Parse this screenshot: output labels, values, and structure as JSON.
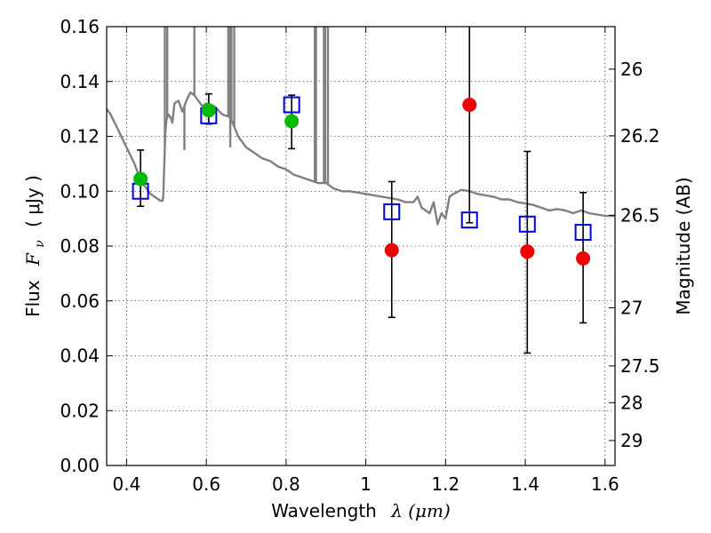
{
  "chart_data": {
    "type": "scatter",
    "xlabel": "Wavelength",
    "xlabel_symbol": "λ (μm)",
    "ylabel": "Flux",
    "ylabel_symbol": "F",
    "ylabel_symbol_sub": "ν",
    "ylabel_unit": "( μJy )",
    "y2label": "Magnitude (AB)",
    "xlim": [
      0.35,
      1.625
    ],
    "ylim": [
      0.0,
      0.16
    ],
    "grid": true,
    "x_ticks": [
      0.4,
      0.6,
      0.8,
      1.0,
      1.2,
      1.4,
      1.6
    ],
    "x_tick_labels": [
      "0.4",
      "0.6",
      "0.8",
      "1",
      "1.2",
      "1.4",
      "1.6"
    ],
    "y_ticks": [
      0.0,
      0.02,
      0.04,
      0.06,
      0.08,
      0.1,
      0.12,
      0.14,
      0.16
    ],
    "y_tick_labels": [
      "0.00",
      "0.02",
      "0.04",
      "0.06",
      "0.08",
      "0.10",
      "0.12",
      "0.14",
      "0.16"
    ],
    "y2_ticks": [
      {
        "label": "26",
        "flux": 0.1445
      },
      {
        "label": "26.2",
        "flux": 0.1202
      },
      {
        "label": "26.5",
        "flux": 0.0912
      },
      {
        "label": "27",
        "flux": 0.0575
      },
      {
        "label": "27.5",
        "flux": 0.0363
      },
      {
        "label": "28",
        "flux": 0.0229
      },
      {
        "label": "29",
        "flux": 0.0091
      }
    ],
    "series": [
      {
        "kind": "observed-green",
        "color": "#00bb00",
        "points": [
          {
            "x": 0.435,
            "y": 0.1045
          },
          {
            "x": 0.606,
            "y": 0.1295
          },
          {
            "x": 0.814,
            "y": 0.1255
          }
        ]
      },
      {
        "kind": "observed-red",
        "color": "#ee0000",
        "points": [
          {
            "x": 1.065,
            "y": 0.0785
          },
          {
            "x": 1.26,
            "y": 0.1315
          },
          {
            "x": 1.405,
            "y": 0.078
          },
          {
            "x": 1.545,
            "y": 0.0755
          }
        ]
      },
      {
        "kind": "model-squares",
        "color": "#0000dd",
        "points": [
          {
            "x": 0.435,
            "y": 0.1,
            "err_lo": 0.0945,
            "err_hi": 0.115
          },
          {
            "x": 0.606,
            "y": 0.1275,
            "err_lo": 0.1245,
            "err_hi": 0.1355
          },
          {
            "x": 0.814,
            "y": 0.1315,
            "err_lo": 0.1155,
            "err_hi": 0.135
          },
          {
            "x": 1.065,
            "y": 0.0925,
            "err_lo": 0.054,
            "err_hi": 0.1035
          },
          {
            "x": 1.26,
            "y": 0.0895,
            "err_lo": 0.0885,
            "err_hi": 0.17
          },
          {
            "x": 1.405,
            "y": 0.088,
            "err_lo": 0.041,
            "err_hi": 0.1145
          },
          {
            "x": 1.545,
            "y": 0.085,
            "err_lo": 0.052,
            "err_hi": 0.0995
          }
        ]
      },
      {
        "kind": "model-spectrum",
        "color": "#808080",
        "points": [
          [
            0.35,
            0.13
          ],
          [
            0.36,
            0.128
          ],
          [
            0.37,
            0.125
          ],
          [
            0.38,
            0.122
          ],
          [
            0.39,
            0.119
          ],
          [
            0.4,
            0.116
          ],
          [
            0.41,
            0.113
          ],
          [
            0.42,
            0.11
          ],
          [
            0.43,
            0.106
          ],
          [
            0.44,
            0.103
          ],
          [
            0.45,
            0.101
          ],
          [
            0.46,
            0.099
          ],
          [
            0.47,
            0.098
          ],
          [
            0.48,
            0.097
          ],
          [
            0.485,
            0.0965
          ],
          [
            0.49,
            0.0965
          ],
          [
            0.492,
            0.098
          ],
          [
            0.495,
            0.112
          ],
          [
            0.497,
            0.121
          ],
          [
            0.5,
            0.126
          ],
          [
            0.505,
            0.128
          ],
          [
            0.51,
            0.127
          ],
          [
            0.515,
            0.125
          ],
          [
            0.52,
            0.132
          ],
          [
            0.53,
            0.133
          ],
          [
            0.54,
            0.129
          ],
          [
            0.55,
            0.133
          ],
          [
            0.56,
            0.136
          ],
          [
            0.57,
            0.135
          ],
          [
            0.58,
            0.133
          ],
          [
            0.59,
            0.131
          ],
          [
            0.6,
            0.132
          ],
          [
            0.62,
            0.131
          ],
          [
            0.64,
            0.128
          ],
          [
            0.66,
            0.127
          ],
          [
            0.68,
            0.12
          ],
          [
            0.7,
            0.116
          ],
          [
            0.72,
            0.114
          ],
          [
            0.74,
            0.112
          ],
          [
            0.76,
            0.111
          ],
          [
            0.78,
            0.109
          ],
          [
            0.8,
            0.108
          ],
          [
            0.82,
            0.106
          ],
          [
            0.84,
            0.105
          ],
          [
            0.86,
            0.104
          ],
          [
            0.88,
            0.103
          ],
          [
            0.9,
            0.103
          ],
          [
            0.92,
            0.101
          ],
          [
            0.94,
            0.1
          ],
          [
            0.96,
            0.1
          ],
          [
            1.0,
            0.099
          ],
          [
            1.04,
            0.098
          ],
          [
            1.08,
            0.097
          ],
          [
            1.1,
            0.096
          ],
          [
            1.12,
            0.096
          ],
          [
            1.13,
            0.098
          ],
          [
            1.14,
            0.094
          ],
          [
            1.16,
            0.092
          ],
          [
            1.17,
            0.096
          ],
          [
            1.18,
            0.088
          ],
          [
            1.19,
            0.092
          ],
          [
            1.2,
            0.09
          ],
          [
            1.21,
            0.098
          ],
          [
            1.22,
            0.099
          ],
          [
            1.24,
            0.1005
          ],
          [
            1.26,
            0.1
          ],
          [
            1.28,
            0.099
          ],
          [
            1.3,
            0.0985
          ],
          [
            1.32,
            0.098
          ],
          [
            1.34,
            0.097
          ],
          [
            1.36,
            0.097
          ],
          [
            1.38,
            0.096
          ],
          [
            1.4,
            0.0955
          ],
          [
            1.42,
            0.095
          ],
          [
            1.44,
            0.094
          ],
          [
            1.46,
            0.093
          ],
          [
            1.48,
            0.0935
          ],
          [
            1.5,
            0.093
          ],
          [
            1.52,
            0.092
          ],
          [
            1.54,
            0.093
          ],
          [
            1.56,
            0.092
          ],
          [
            1.58,
            0.0915
          ],
          [
            1.6,
            0.091
          ],
          [
            1.625,
            0.091
          ]
        ],
        "spikes": [
          {
            "x": 0.496,
            "top": 0.17
          },
          {
            "x": 0.502,
            "top": 0.17
          },
          {
            "x": 0.545,
            "top": 0.115
          },
          {
            "x": 0.57,
            "top": 0.17
          },
          {
            "x": 0.655,
            "top": 0.17
          },
          {
            "x": 0.659,
            "top": 0.17
          },
          {
            "x": 0.663,
            "top": 0.17
          },
          {
            "x": 0.67,
            "top": 0.17
          },
          {
            "x": 0.66,
            "top": 0.116
          },
          {
            "x": 0.872,
            "top": 0.17
          },
          {
            "x": 0.875,
            "top": 0.17
          },
          {
            "x": 0.895,
            "top": 0.17
          },
          {
            "x": 0.898,
            "top": 0.17
          },
          {
            "x": 0.905,
            "top": 0.17
          }
        ]
      }
    ]
  }
}
